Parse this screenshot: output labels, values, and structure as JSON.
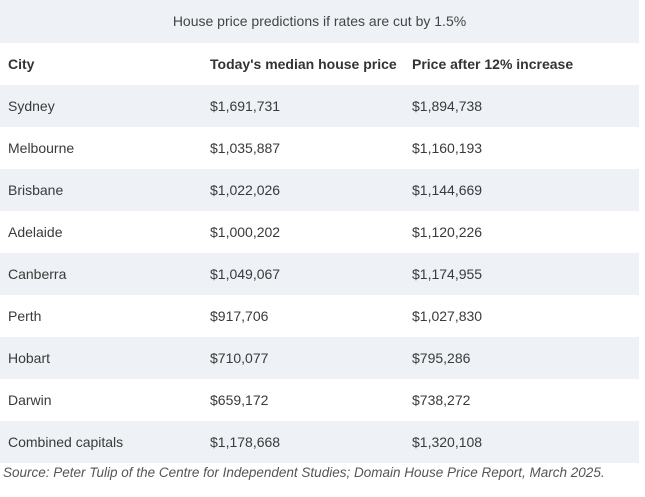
{
  "caption": "House price predictions if rates are cut by 1.5%",
  "headers": [
    "City",
    "Today's median house price",
    "Price after 12% increase"
  ],
  "rows": [
    {
      "city": "Sydney",
      "today": "$1,691,731",
      "after": "$1,894,738"
    },
    {
      "city": "Melbourne",
      "today": "$1,035,887",
      "after": "$1,160,193"
    },
    {
      "city": "Brisbane",
      "today": "$1,022,026",
      "after": "$1,144,669"
    },
    {
      "city": "Adelaide",
      "today": "$1,000,202",
      "after": "$1,120,226"
    },
    {
      "city": "Canberra",
      "today": "$1,049,067",
      "after": "$1,174,955"
    },
    {
      "city": "Perth",
      "today": "$917,706",
      "after": "$1,027,830"
    },
    {
      "city": "Hobart",
      "today": "$710,077",
      "after": "$795,286"
    },
    {
      "city": "Darwin",
      "today": "$659,172",
      "after": "$738,272"
    },
    {
      "city": "Combined capitals",
      "today": "$1,178,668",
      "after": "$1,320,108"
    }
  ],
  "source": "Source: Peter Tulip of the Centre for Independent Studies; Domain House Price Report, March 2025.",
  "colors": {
    "stripe": "#eef1f5",
    "background": "#ffffff",
    "text": "#2b2b2b"
  }
}
